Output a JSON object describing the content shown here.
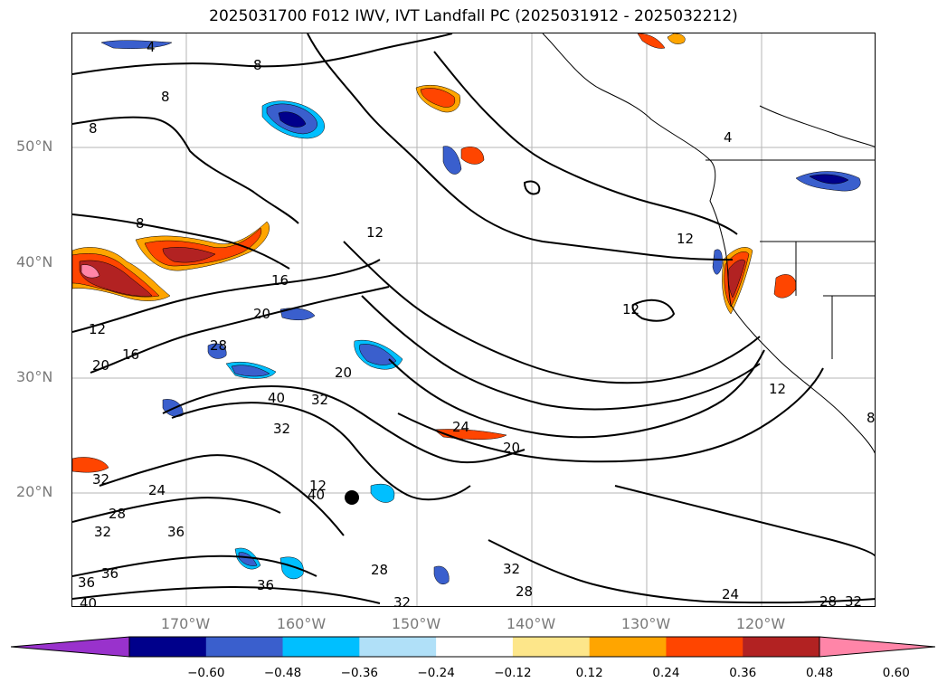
{
  "figure": {
    "title": "2025031700 F012 IWV, IVT Landfall PC (2025031912 - 2025032212)"
  },
  "axes": {
    "lat_labels": [
      "50°N",
      "40°N",
      "30°N",
      "20°N"
    ],
    "lon_labels": [
      "170°W",
      "160°W",
      "150°W",
      "140°W",
      "130°W",
      "120°W"
    ]
  },
  "contour_labels": [
    "4",
    "8",
    "8",
    "8",
    "8",
    "12",
    "12",
    "12",
    "12",
    "16",
    "20",
    "20",
    "16",
    "28",
    "40",
    "32",
    "32",
    "24",
    "20",
    "24",
    "32",
    "28",
    "36",
    "36",
    "36",
    "32",
    "40",
    "36",
    "28",
    "32",
    "28",
    "32",
    "24",
    "28",
    "32",
    "40",
    "4",
    "12",
    "12",
    "8",
    "20"
  ],
  "colorbar": {
    "tick_labels": [
      "−0.60",
      "−0.48",
      "−0.36",
      "−0.24",
      "−0.12",
      "0.12",
      "0.24",
      "0.36",
      "0.48",
      "0.60"
    ],
    "colors": [
      "#9932cc",
      "#00008b",
      "#3a5fcd",
      "#00bfff",
      "#b0e0f8",
      "#ffffff",
      "#fde68a",
      "#ffa500",
      "#ff4500",
      "#b22222",
      "#ff85a8"
    ]
  }
}
